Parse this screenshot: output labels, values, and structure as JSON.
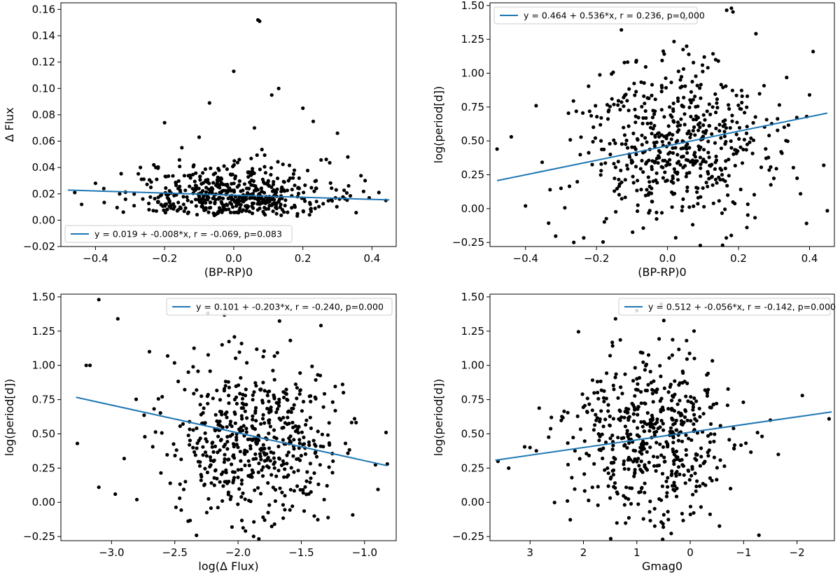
{
  "chart_data": [
    {
      "type": "scatter",
      "xlabel": "(BP-RP)0",
      "ylabel": "Δ Flux",
      "xlim": [
        -0.5,
        0.47
      ],
      "ylim": [
        -0.02,
        0.165
      ],
      "xticks": [
        -0.4,
        -0.2,
        0.0,
        0.2,
        0.4
      ],
      "xtick_labels": [
        "−0.4",
        "−0.2",
        "0.0",
        "0.2",
        "0.4"
      ],
      "yticks": [
        -0.02,
        0.0,
        0.02,
        0.04,
        0.06,
        0.08,
        0.1,
        0.12,
        0.14,
        0.16
      ],
      "ytick_labels": [
        "−0.02",
        "0.00",
        "0.02",
        "0.04",
        "0.06",
        "0.08",
        "0.10",
        "0.12",
        "0.14",
        "0.16"
      ],
      "grid": false,
      "legend_position": "lower-left",
      "fit": {
        "label": "y = 0.019 + -0.008*x, r = -0.069, p=0.083",
        "intercept": 0.019,
        "slope": -0.008,
        "x_range": [
          -0.48,
          0.45
        ],
        "color": "#1f77b4"
      },
      "scatter_cloud": {
        "n": 520,
        "x_center": 0.0,
        "x_sd": 0.14,
        "y_center": 0.018,
        "y_sd": 0.01,
        "seed": 11
      },
      "points": [
        [
          0.07,
          0.152
        ],
        [
          0.075,
          0.151
        ],
        [
          0.0,
          0.113
        ],
        [
          0.13,
          0.1
        ],
        [
          0.11,
          0.095
        ],
        [
          -0.07,
          0.089
        ],
        [
          0.2,
          0.085
        ],
        [
          0.06,
          0.07
        ],
        [
          -0.2,
          0.074
        ],
        [
          0.3,
          0.066
        ],
        [
          -0.15,
          0.055
        ],
        [
          0.33,
          0.048
        ],
        [
          -0.27,
          0.04
        ],
        [
          -0.4,
          0.028
        ],
        [
          -0.46,
          0.021
        ],
        [
          0.42,
          0.021
        ],
        [
          0.44,
          0.015
        ],
        [
          -0.44,
          0.012
        ],
        [
          0.23,
          0.075
        ],
        [
          -0.1,
          0.063
        ],
        [
          0.38,
          0.03
        ],
        [
          -0.33,
          0.02
        ]
      ]
    },
    {
      "type": "scatter",
      "xlabel": "(BP-RP)0",
      "ylabel": "log(period[d])",
      "xlim": [
        -0.5,
        0.47
      ],
      "ylim": [
        -0.28,
        1.52
      ],
      "xticks": [
        -0.4,
        -0.2,
        0.0,
        0.2,
        0.4
      ],
      "xtick_labels": [
        "−0.4",
        "−0.2",
        "0.0",
        "0.2",
        "0.4"
      ],
      "yticks": [
        -0.25,
        0.0,
        0.25,
        0.5,
        0.75,
        1.0,
        1.25,
        1.5
      ],
      "ytick_labels": [
        "−0.25",
        "0.00",
        "0.25",
        "0.50",
        "0.75",
        "1.00",
        "1.25",
        "1.50"
      ],
      "grid": false,
      "legend_position": "upper-left",
      "fit": {
        "label": "y = 0.464 + 0.536*x, r = 0.236, p=0.000",
        "intercept": 0.464,
        "slope": 0.536,
        "x_range": [
          -0.48,
          0.45
        ],
        "color": "#1f77b4"
      },
      "scatter_cloud": {
        "n": 560,
        "x_center": 0.02,
        "x_sd": 0.13,
        "y_center": 0.47,
        "y_sd": 0.3,
        "seed": 23
      },
      "points": [
        [
          -0.48,
          0.44
        ],
        [
          -0.44,
          0.53
        ],
        [
          -0.4,
          0.02
        ],
        [
          -0.37,
          0.76
        ],
        [
          0.18,
          1.48
        ],
        [
          0.41,
          1.16
        ],
        [
          0.44,
          0.32
        ],
        [
          0.4,
          0.84
        ],
        [
          -0.13,
          1.32
        ],
        [
          0.05,
          1.4
        ],
        [
          -0.3,
          0.15
        ],
        [
          0.32,
          0.42
        ]
      ]
    },
    {
      "type": "scatter",
      "xlabel": "log(Δ Flux)",
      "ylabel": "log(period[d])",
      "xlim": [
        -3.4,
        -0.75
      ],
      "ylim": [
        -0.28,
        1.52
      ],
      "xticks": [
        -3.0,
        -2.5,
        -2.0,
        -1.5,
        -1.0
      ],
      "xtick_labels": [
        "−3.0",
        "−2.5",
        "−2.0",
        "−1.5",
        "−1.0"
      ],
      "yticks": [
        -0.25,
        0.0,
        0.25,
        0.5,
        0.75,
        1.0,
        1.25,
        1.5
      ],
      "ytick_labels": [
        "−0.25",
        "0.00",
        "0.25",
        "0.50",
        "0.75",
        "1.00",
        "1.25",
        "1.50"
      ],
      "grid": false,
      "legend_position": "upper-right",
      "fit": {
        "label": "y = 0.101 + -0.203*x, r = -0.240, p=0.000",
        "intercept": 0.101,
        "slope": -0.203,
        "x_range": [
          -3.28,
          -0.82
        ],
        "color": "#1f77b4"
      },
      "scatter_cloud": {
        "n": 560,
        "x_center": -1.85,
        "x_sd": 0.33,
        "y_center": 0.45,
        "y_sd": 0.3,
        "seed": 37
      },
      "points": [
        [
          -3.1,
          1.48
        ],
        [
          -3.2,
          1.0
        ],
        [
          -3.27,
          0.43
        ],
        [
          -2.95,
          1.34
        ],
        [
          -3.1,
          0.11
        ],
        [
          -2.97,
          0.06
        ],
        [
          -2.8,
          0.02
        ],
        [
          -0.82,
          0.28
        ],
        [
          -0.83,
          0.51
        ],
        [
          -3.17,
          1.0
        ],
        [
          -2.7,
          1.1
        ],
        [
          -2.9,
          0.32
        ]
      ]
    },
    {
      "type": "scatter",
      "xlabel": "Gmag0",
      "ylabel": "log(period[d])",
      "xlim": [
        3.75,
        -2.7
      ],
      "ylim": [
        -0.28,
        1.52
      ],
      "xticks": [
        3,
        2,
        1,
        0,
        -1,
        -2
      ],
      "xtick_labels": [
        "3",
        "2",
        "1",
        "0",
        "−1",
        "−2"
      ],
      "yticks": [
        -0.25,
        0.0,
        0.25,
        0.5,
        0.75,
        1.0,
        1.25,
        1.5
      ],
      "ytick_labels": [
        "−0.25",
        "0.00",
        "0.25",
        "0.50",
        "0.75",
        "1.00",
        "1.25",
        "1.50"
      ],
      "grid": false,
      "legend_position": "upper-right",
      "fit": {
        "label": "y = 0.512 + -0.056*x, r = -0.142, p=0.000",
        "intercept": 0.512,
        "slope": -0.056,
        "x_range": [
          3.65,
          -2.65
        ],
        "color": "#1f77b4"
      },
      "scatter_cloud": {
        "n": 540,
        "x_center": 0.7,
        "x_sd": 0.75,
        "y_center": 0.45,
        "y_sd": 0.3,
        "seed": 51
      },
      "points": [
        [
          3.6,
          0.3
        ],
        [
          3.4,
          0.25
        ],
        [
          -2.6,
          0.61
        ],
        [
          -2.1,
          0.78
        ],
        [
          2.6,
          0.62
        ],
        [
          2.3,
          0.01
        ],
        [
          1.4,
          1.34
        ],
        [
          1.0,
          1.4
        ],
        [
          -1.5,
          0.6
        ],
        [
          -1.65,
          0.35
        ],
        [
          3.0,
          0.4
        ]
      ]
    }
  ]
}
